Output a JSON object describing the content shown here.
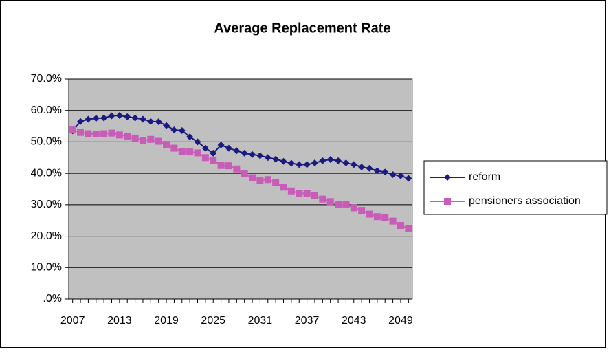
{
  "chart_data": {
    "type": "line",
    "title": "Average Replacement Rate",
    "x": [
      2007,
      2008,
      2009,
      2010,
      2011,
      2012,
      2013,
      2014,
      2015,
      2016,
      2017,
      2018,
      2019,
      2020,
      2021,
      2022,
      2023,
      2024,
      2025,
      2026,
      2027,
      2028,
      2029,
      2030,
      2031,
      2032,
      2033,
      2034,
      2035,
      2036,
      2037,
      2038,
      2039,
      2040,
      2041,
      2042,
      2043,
      2044,
      2045,
      2046,
      2047,
      2048,
      2049,
      2050
    ],
    "xlim": [
      2006.5,
      2050.5
    ],
    "xticks": [
      2007,
      2013,
      2019,
      2025,
      2031,
      2037,
      2043,
      2049
    ],
    "ylim": [
      0,
      70
    ],
    "yticks": [
      {
        "value": 0,
        "label": ".0%"
      },
      {
        "value": 10,
        "label": "10.0%"
      },
      {
        "value": 20,
        "label": "20.0%"
      },
      {
        "value": 30,
        "label": "30.0%"
      },
      {
        "value": 40,
        "label": "40.0%"
      },
      {
        "value": 50,
        "label": "50.0%"
      },
      {
        "value": 60,
        "label": "60.0%"
      },
      {
        "value": 70,
        "label": "70.0%"
      }
    ],
    "grid": true,
    "legend": "right",
    "series": [
      {
        "name": "reform",
        "color": "#1a1a80",
        "marker": "diamond",
        "values": [
          53.5,
          56.5,
          57.2,
          57.5,
          57.6,
          58.3,
          58.4,
          58.0,
          57.6,
          57.2,
          56.5,
          56.4,
          55.2,
          53.8,
          53.6,
          51.6,
          50.0,
          48.0,
          46.4,
          49.0,
          48.0,
          47.2,
          46.4,
          46.0,
          45.6,
          45.0,
          44.5,
          43.8,
          43.2,
          42.8,
          42.8,
          43.3,
          44.0,
          44.4,
          44.0,
          43.3,
          42.8,
          42.0,
          41.6,
          40.8,
          40.4,
          39.6,
          39.2,
          38.4
        ]
      },
      {
        "name": "pensioners association",
        "color": "#c85cb8",
        "marker": "square",
        "values": [
          53.8,
          53.0,
          52.6,
          52.5,
          52.6,
          52.8,
          52.2,
          51.8,
          51.2,
          50.5,
          50.8,
          50.2,
          49.2,
          48.0,
          47.0,
          46.8,
          46.5,
          45.0,
          44.0,
          42.5,
          42.4,
          41.4,
          39.8,
          38.6,
          37.8,
          38.0,
          37.0,
          35.6,
          34.4,
          33.6,
          33.6,
          33.0,
          31.8,
          31.0,
          30.0,
          30.0,
          29.0,
          28.2,
          27.0,
          26.2,
          26.0,
          24.8,
          23.4,
          22.4
        ]
      }
    ]
  }
}
